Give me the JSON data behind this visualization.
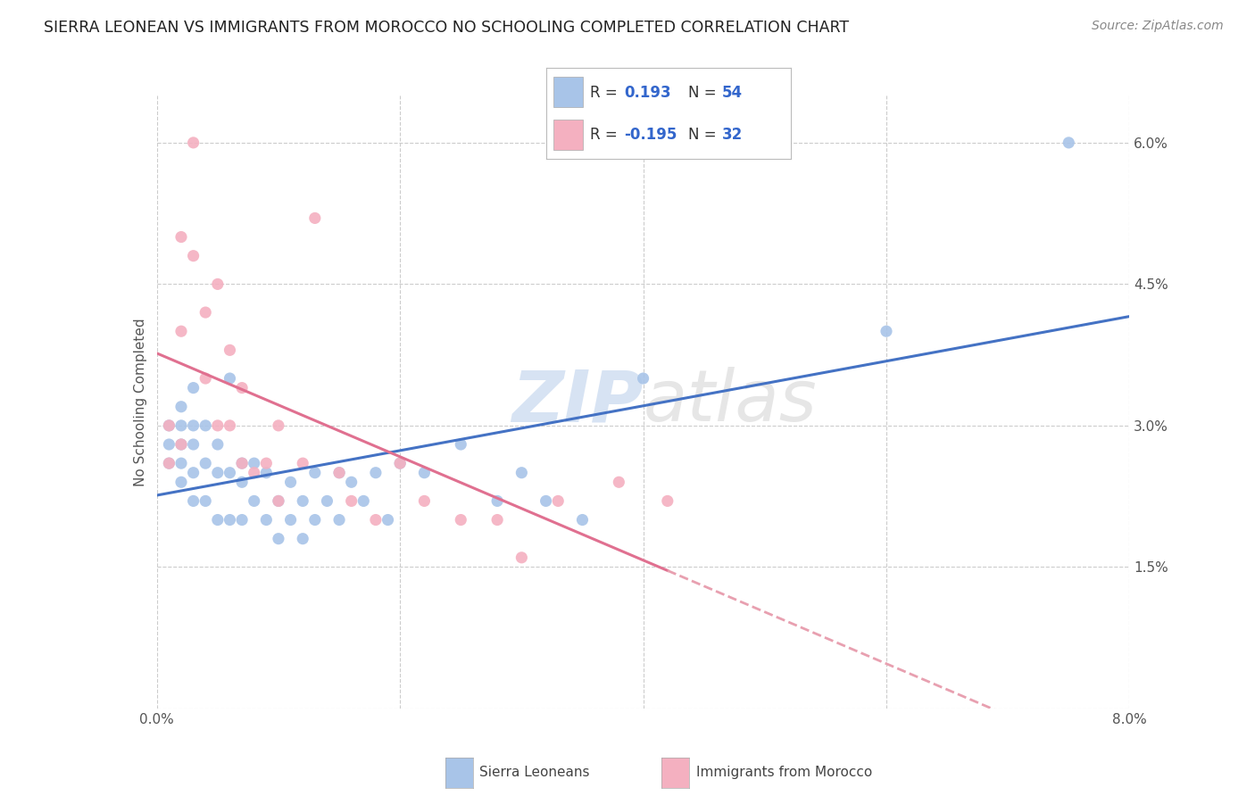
{
  "title": "SIERRA LEONEAN VS IMMIGRANTS FROM MOROCCO NO SCHOOLING COMPLETED CORRELATION CHART",
  "source": "Source: ZipAtlas.com",
  "ylabel": "No Schooling Completed",
  "xlim": [
    0.0,
    0.08
  ],
  "ylim": [
    0.0,
    0.065
  ],
  "blue_color": "#a8c4e8",
  "pink_color": "#f4b0c0",
  "blue_line_color": "#4472c4",
  "pink_line_color": "#e07090",
  "pink_line_color_dash": "#e8a0b0",
  "watermark_color": "#ccddf0",
  "background_color": "#ffffff",
  "grid_color": "#cccccc",
  "sl_x": [
    0.001,
    0.001,
    0.001,
    0.002,
    0.002,
    0.002,
    0.002,
    0.002,
    0.003,
    0.003,
    0.003,
    0.003,
    0.003,
    0.004,
    0.004,
    0.004,
    0.005,
    0.005,
    0.005,
    0.006,
    0.006,
    0.006,
    0.007,
    0.007,
    0.007,
    0.008,
    0.008,
    0.009,
    0.009,
    0.01,
    0.01,
    0.011,
    0.011,
    0.012,
    0.012,
    0.013,
    0.013,
    0.014,
    0.015,
    0.015,
    0.016,
    0.017,
    0.018,
    0.019,
    0.02,
    0.022,
    0.025,
    0.028,
    0.03,
    0.032,
    0.035,
    0.04,
    0.06,
    0.075
  ],
  "sl_y": [
    0.03,
    0.028,
    0.026,
    0.032,
    0.03,
    0.028,
    0.026,
    0.024,
    0.034,
    0.03,
    0.028,
    0.025,
    0.022,
    0.03,
    0.026,
    0.022,
    0.028,
    0.025,
    0.02,
    0.035,
    0.025,
    0.02,
    0.026,
    0.024,
    0.02,
    0.026,
    0.022,
    0.025,
    0.02,
    0.022,
    0.018,
    0.024,
    0.02,
    0.022,
    0.018,
    0.025,
    0.02,
    0.022,
    0.025,
    0.02,
    0.024,
    0.022,
    0.025,
    0.02,
    0.026,
    0.025,
    0.028,
    0.022,
    0.025,
    0.022,
    0.02,
    0.035,
    0.04,
    0.06
  ],
  "mo_x": [
    0.001,
    0.001,
    0.002,
    0.002,
    0.002,
    0.003,
    0.003,
    0.004,
    0.004,
    0.005,
    0.005,
    0.006,
    0.006,
    0.007,
    0.007,
    0.008,
    0.009,
    0.01,
    0.01,
    0.012,
    0.013,
    0.015,
    0.016,
    0.018,
    0.02,
    0.022,
    0.025,
    0.028,
    0.03,
    0.033,
    0.038,
    0.042
  ],
  "mo_y": [
    0.03,
    0.026,
    0.05,
    0.04,
    0.028,
    0.06,
    0.048,
    0.042,
    0.035,
    0.045,
    0.03,
    0.038,
    0.03,
    0.034,
    0.026,
    0.025,
    0.026,
    0.03,
    0.022,
    0.026,
    0.052,
    0.025,
    0.022,
    0.02,
    0.026,
    0.022,
    0.02,
    0.02,
    0.016,
    0.022,
    0.024,
    0.022
  ],
  "legend_row1_r": "R = ",
  "legend_row1_rv": "0.193",
  "legend_row1_n": "N = ",
  "legend_row1_nv": "54",
  "legend_row2_r": "R = ",
  "legend_row2_rv": "-0.195",
  "legend_row2_n": "N = ",
  "legend_row2_nv": "32",
  "legend_label1": "Sierra Leoneans",
  "legend_label2": "Immigrants from Morocco"
}
